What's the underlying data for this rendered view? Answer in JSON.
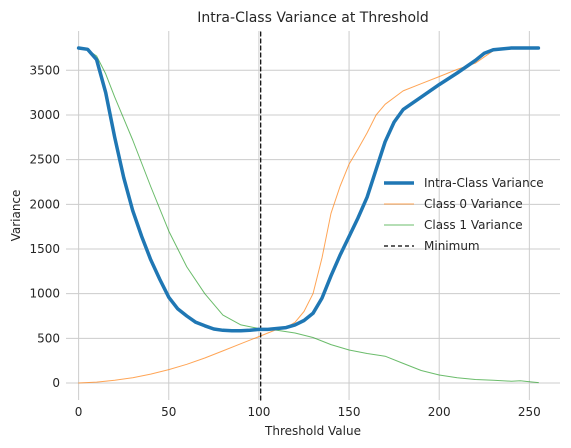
{
  "chart_data": {
    "type": "line",
    "title": "Intra-Class Variance at Threshold",
    "xlabel": "Threshold Value",
    "ylabel": "Variance",
    "xlim": [
      -7,
      267
    ],
    "ylim": [
      -190,
      3940
    ],
    "xticks": [
      0,
      50,
      100,
      150,
      200,
      250
    ],
    "yticks": [
      0,
      500,
      1000,
      1500,
      2000,
      2500,
      3000,
      3500
    ],
    "grid": true,
    "legend": "center-right",
    "minimum_x": 101,
    "series": [
      {
        "name": "Intra-Class Variance",
        "color": "#1f77b4",
        "style": "solid-thick",
        "x": [
          0,
          5,
          10,
          15,
          20,
          25,
          30,
          35,
          40,
          45,
          50,
          55,
          60,
          65,
          70,
          75,
          80,
          85,
          90,
          95,
          100,
          105,
          110,
          115,
          120,
          125,
          130,
          135,
          140,
          145,
          150,
          155,
          160,
          165,
          170,
          175,
          180,
          190,
          200,
          210,
          220,
          225,
          230,
          240,
          250,
          255
        ],
        "y": [
          3750,
          3735,
          3620,
          3250,
          2750,
          2300,
          1930,
          1640,
          1380,
          1160,
          960,
          830,
          750,
          680,
          640,
          605,
          590,
          585,
          585,
          590,
          600,
          600,
          610,
          620,
          650,
          700,
          780,
          950,
          1200,
          1430,
          1640,
          1850,
          2080,
          2390,
          2700,
          2920,
          3060,
          3200,
          3340,
          3470,
          3610,
          3690,
          3730,
          3750,
          3750,
          3750
        ]
      },
      {
        "name": "Class 0 Variance",
        "color": "#ff7f0e",
        "style": "solid-thin",
        "x": [
          0,
          10,
          20,
          30,
          40,
          50,
          60,
          70,
          80,
          90,
          100,
          105,
          110,
          115,
          120,
          125,
          130,
          135,
          140,
          145,
          150,
          155,
          160,
          165,
          170,
          180,
          190,
          200,
          210,
          220,
          230,
          240,
          250,
          255
        ],
        "y": [
          0,
          10,
          30,
          60,
          100,
          150,
          210,
          280,
          360,
          440,
          520,
          560,
          600,
          620,
          680,
          800,
          1000,
          1400,
          1900,
          2200,
          2450,
          2620,
          2800,
          3000,
          3120,
          3270,
          3350,
          3430,
          3510,
          3580,
          3720,
          3760,
          3760,
          3760
        ]
      },
      {
        "name": "Class 1 Variance",
        "color": "#2ca02c",
        "style": "solid-thin",
        "x": [
          0,
          5,
          10,
          15,
          20,
          30,
          40,
          50,
          60,
          70,
          80,
          90,
          100,
          110,
          120,
          130,
          140,
          150,
          160,
          170,
          180,
          190,
          200,
          210,
          220,
          230,
          240,
          245,
          250,
          255
        ],
        "y": [
          3750,
          3730,
          3660,
          3460,
          3200,
          2720,
          2200,
          1700,
          1300,
          1000,
          760,
          650,
          610,
          590,
          560,
          510,
          430,
          370,
          330,
          300,
          220,
          140,
          90,
          60,
          40,
          30,
          20,
          25,
          15,
          5
        ]
      },
      {
        "name": "Minimum",
        "color": "#000000",
        "style": "dashed-vertical",
        "x": [
          101,
          101
        ],
        "y": [
          -190,
          3940
        ]
      }
    ]
  }
}
